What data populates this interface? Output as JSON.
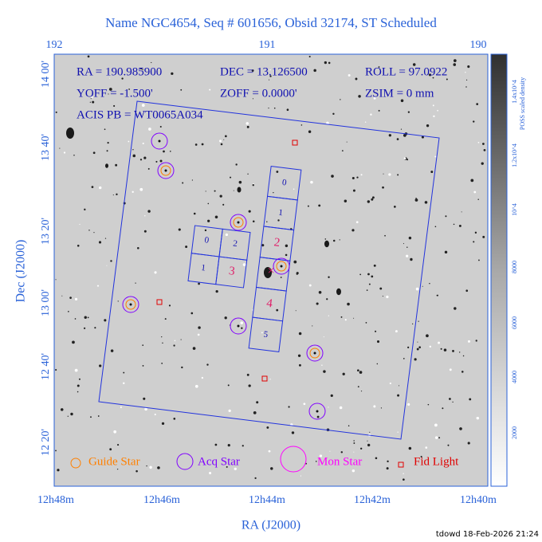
{
  "title": "Name NGC4654, Seq # 601656, Obsid 32174, ST Scheduled",
  "info": [
    "RA = 190.985900",
    "DEC = 13.126500",
    "ROLL = 97.0922",
    "YOFF = -1.500'",
    "ZOFF = 0.0000'",
    "ZSIM = 0 mm",
    "ACIS PB = WT0065A034"
  ],
  "top_axis": [
    "192",
    "191",
    "190"
  ],
  "left_axis": [
    "14 00'",
    "13 40'",
    "13 20'",
    "13 00'",
    "12 40'",
    "12 20'"
  ],
  "bottom_axis": [
    "12h48m",
    "12h46m",
    "12h44m",
    "12h42m",
    "12h40m"
  ],
  "x_label": "RA (J2000)",
  "y_label": "Dec (J2000)",
  "colorbar": {
    "label": "POSS scaled density",
    "ticks": [
      "1.4x10^4",
      "1.2x10^4",
      "10^4",
      "8000",
      "6000",
      "4000",
      "2000"
    ]
  },
  "i_chips": [
    "0",
    "2",
    "1",
    "3"
  ],
  "s_chips": [
    "0",
    "1",
    "2",
    "4",
    "5"
  ],
  "legend": [
    "Guide Star",
    "Acq Star",
    "Mon Star",
    "Fid Light"
  ],
  "footer": "tdowd 18-Feb-2026 21:24"
}
